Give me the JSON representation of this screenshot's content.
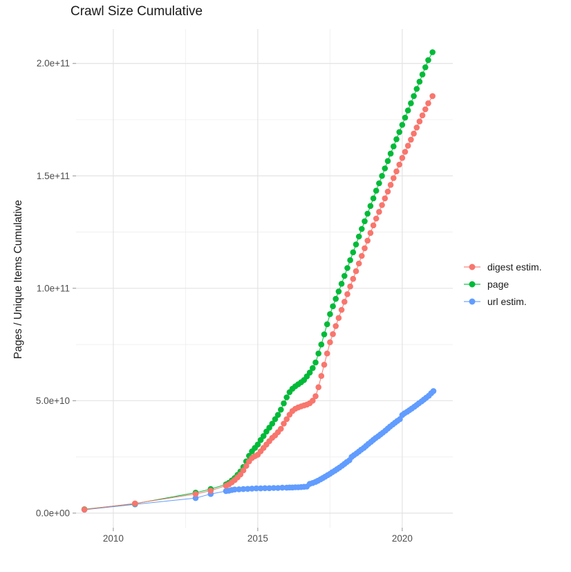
{
  "title": "Crawl Size Cumulative",
  "y_axis_title": "Pages / Unique Items Cumulative",
  "legend": {
    "items": [
      {
        "label": "digest estim.",
        "color": "#F8766D"
      },
      {
        "label": "page",
        "color": "#00BA38"
      },
      {
        "label": "url estim.",
        "color": "#619CFF"
      }
    ]
  },
  "chart_data": {
    "type": "line",
    "title": "Crawl Size Cumulative",
    "xlabel": "",
    "ylabel": "Pages / Unique Items Cumulative",
    "value_unit": "billions (1e9)",
    "xlim": [
      2008.71,
      2021.75
    ],
    "ylim_billions": [
      -6.5,
      215.3
    ],
    "grid": "on",
    "legend_position": "right",
    "x_ticks": {
      "values": [
        2010,
        2015,
        2020
      ],
      "labels": [
        "2010",
        "2015",
        "2020"
      ],
      "minor": [
        2012.5,
        2017.5
      ]
    },
    "y_ticks": {
      "values_billions": [
        0,
        50,
        100,
        150,
        200
      ],
      "labels": [
        "0.0e+00",
        "5.0e+10",
        "1.0e+11",
        "1.5e+11",
        "2.0e+11"
      ],
      "minor_billions": [
        25,
        75,
        125,
        175
      ]
    },
    "series": [
      {
        "name": "url estim.",
        "color": "#619CFF",
        "points": [
          [
            2009.0,
            1.5
          ],
          [
            2010.75,
            3.9
          ],
          [
            2012.85,
            6.7
          ],
          [
            2013.37,
            8.5
          ],
          [
            2013.9,
            9.8
          ],
          [
            2014.0,
            10.0
          ],
          [
            2014.1,
            10.3
          ],
          [
            2014.2,
            10.5
          ],
          [
            2014.35,
            10.6
          ],
          [
            2014.5,
            10.7
          ],
          [
            2014.65,
            10.8
          ],
          [
            2014.8,
            10.9
          ],
          [
            2014.95,
            11.0
          ],
          [
            2015.1,
            11.0
          ],
          [
            2015.25,
            11.1
          ],
          [
            2015.4,
            11.1
          ],
          [
            2015.55,
            11.2
          ],
          [
            2015.7,
            11.2
          ],
          [
            2015.85,
            11.3
          ],
          [
            2016.0,
            11.3
          ],
          [
            2016.1,
            11.4
          ],
          [
            2016.2,
            11.4
          ],
          [
            2016.3,
            11.5
          ],
          [
            2016.4,
            11.5
          ],
          [
            2016.5,
            11.6
          ],
          [
            2016.6,
            11.7
          ],
          [
            2016.7,
            11.8
          ],
          [
            2016.8,
            13.0
          ],
          [
            2016.9,
            13.4
          ],
          [
            2017.0,
            13.9
          ],
          [
            2017.08,
            14.4
          ],
          [
            2017.17,
            15.0
          ],
          [
            2017.25,
            15.6
          ],
          [
            2017.33,
            16.2
          ],
          [
            2017.42,
            16.9
          ],
          [
            2017.5,
            17.5
          ],
          [
            2017.58,
            18.2
          ],
          [
            2017.67,
            18.9
          ],
          [
            2017.75,
            19.6
          ],
          [
            2017.83,
            20.3
          ],
          [
            2017.92,
            21.1
          ],
          [
            2018.0,
            21.9
          ],
          [
            2018.08,
            22.7
          ],
          [
            2018.17,
            23.5
          ],
          [
            2018.25,
            25.0
          ],
          [
            2018.33,
            25.8
          ],
          [
            2018.42,
            26.6
          ],
          [
            2018.5,
            27.4
          ],
          [
            2018.58,
            28.2
          ],
          [
            2018.67,
            29.0
          ],
          [
            2018.75,
            29.9
          ],
          [
            2018.83,
            30.8
          ],
          [
            2018.92,
            31.7
          ],
          [
            2019.0,
            32.6
          ],
          [
            2019.08,
            33.4
          ],
          [
            2019.17,
            34.2
          ],
          [
            2019.25,
            35.0
          ],
          [
            2019.33,
            35.8
          ],
          [
            2019.42,
            36.7
          ],
          [
            2019.5,
            37.6
          ],
          [
            2019.58,
            38.5
          ],
          [
            2019.67,
            39.4
          ],
          [
            2019.75,
            40.2
          ],
          [
            2019.83,
            41.0
          ],
          [
            2019.92,
            41.8
          ],
          [
            2020.0,
            43.6
          ],
          [
            2020.08,
            44.4
          ],
          [
            2020.17,
            45.1
          ],
          [
            2020.25,
            45.8
          ],
          [
            2020.33,
            46.5
          ],
          [
            2020.42,
            47.3
          ],
          [
            2020.5,
            48.1
          ],
          [
            2020.58,
            48.9
          ],
          [
            2020.67,
            49.7
          ],
          [
            2020.75,
            50.5
          ],
          [
            2020.83,
            51.3
          ],
          [
            2020.92,
            52.2
          ],
          [
            2021.0,
            53.3
          ],
          [
            2021.08,
            54.3
          ]
        ]
      },
      {
        "name": "page",
        "color": "#00BA38",
        "points": [
          [
            2009.0,
            1.7
          ],
          [
            2010.75,
            4.2
          ],
          [
            2012.85,
            9.1
          ],
          [
            2013.37,
            10.7
          ],
          [
            2013.9,
            12.8
          ],
          [
            2014.0,
            13.5
          ],
          [
            2014.1,
            14.5
          ],
          [
            2014.2,
            15.6
          ],
          [
            2014.3,
            17.0
          ],
          [
            2014.4,
            18.5
          ],
          [
            2014.5,
            20.5
          ],
          [
            2014.6,
            23.0
          ],
          [
            2014.7,
            25.5
          ],
          [
            2014.8,
            27.5
          ],
          [
            2014.9,
            29.0
          ],
          [
            2015.0,
            30.5
          ],
          [
            2015.1,
            32.5
          ],
          [
            2015.2,
            34.3
          ],
          [
            2015.3,
            36.3
          ],
          [
            2015.4,
            38.0
          ],
          [
            2015.5,
            39.8
          ],
          [
            2015.6,
            41.8
          ],
          [
            2015.7,
            43.7
          ],
          [
            2015.8,
            46.0
          ],
          [
            2015.9,
            48.8
          ],
          [
            2016.0,
            51.5
          ],
          [
            2016.1,
            53.8
          ],
          [
            2016.2,
            55.3
          ],
          [
            2016.3,
            56.4
          ],
          [
            2016.4,
            57.3
          ],
          [
            2016.5,
            58.2
          ],
          [
            2016.6,
            59.2
          ],
          [
            2016.7,
            60.8
          ],
          [
            2016.8,
            62.5
          ],
          [
            2016.9,
            64.5
          ],
          [
            2017.0,
            67.0
          ],
          [
            2017.1,
            71.0
          ],
          [
            2017.2,
            75.0
          ],
          [
            2017.3,
            79.5
          ],
          [
            2017.4,
            84.0
          ],
          [
            2017.5,
            88.5
          ],
          [
            2017.6,
            92.0
          ],
          [
            2017.7,
            95.3
          ],
          [
            2017.8,
            98.6
          ],
          [
            2017.9,
            102.0
          ],
          [
            2018.0,
            105.5
          ],
          [
            2018.1,
            109.0
          ],
          [
            2018.2,
            112.5
          ],
          [
            2018.3,
            116.0
          ],
          [
            2018.4,
            119.5
          ],
          [
            2018.5,
            123.0
          ],
          [
            2018.6,
            126.4
          ],
          [
            2018.7,
            129.8
          ],
          [
            2018.8,
            133.2
          ],
          [
            2018.9,
            136.6
          ],
          [
            2019.0,
            140.0
          ],
          [
            2019.1,
            143.4
          ],
          [
            2019.2,
            146.7
          ],
          [
            2019.3,
            150.0
          ],
          [
            2019.4,
            153.3
          ],
          [
            2019.5,
            156.6
          ],
          [
            2019.6,
            159.9
          ],
          [
            2019.7,
            163.1
          ],
          [
            2019.8,
            166.3
          ],
          [
            2019.9,
            169.5
          ],
          [
            2020.0,
            172.7
          ],
          [
            2020.1,
            175.9
          ],
          [
            2020.2,
            179.1
          ],
          [
            2020.3,
            182.3
          ],
          [
            2020.4,
            185.5
          ],
          [
            2020.5,
            188.7
          ],
          [
            2020.6,
            191.9
          ],
          [
            2020.7,
            195.1
          ],
          [
            2020.8,
            198.3
          ],
          [
            2020.9,
            201.5
          ],
          [
            2021.05,
            205.0
          ]
        ]
      },
      {
        "name": "digest estim.",
        "color": "#F8766D",
        "points": [
          [
            2009.0,
            1.6
          ],
          [
            2010.75,
            4.3
          ],
          [
            2012.85,
            8.5
          ],
          [
            2013.37,
            10.0
          ],
          [
            2013.9,
            12.2
          ],
          [
            2014.0,
            12.8
          ],
          [
            2014.1,
            13.7
          ],
          [
            2014.2,
            14.7
          ],
          [
            2014.3,
            15.9
          ],
          [
            2014.4,
            17.2
          ],
          [
            2014.5,
            19.0
          ],
          [
            2014.6,
            21.0
          ],
          [
            2014.7,
            23.0
          ],
          [
            2014.8,
            24.5
          ],
          [
            2014.9,
            25.3
          ],
          [
            2015.0,
            26.0
          ],
          [
            2015.1,
            27.5
          ],
          [
            2015.2,
            29.0
          ],
          [
            2015.3,
            30.5
          ],
          [
            2015.4,
            32.0
          ],
          [
            2015.5,
            33.5
          ],
          [
            2015.6,
            34.6
          ],
          [
            2015.7,
            36.0
          ],
          [
            2015.8,
            37.5
          ],
          [
            2015.9,
            39.8
          ],
          [
            2016.0,
            41.8
          ],
          [
            2016.1,
            43.8
          ],
          [
            2016.2,
            45.4
          ],
          [
            2016.3,
            46.4
          ],
          [
            2016.4,
            47.0
          ],
          [
            2016.5,
            47.5
          ],
          [
            2016.6,
            47.9
          ],
          [
            2016.7,
            48.3
          ],
          [
            2016.8,
            48.9
          ],
          [
            2016.9,
            50.0
          ],
          [
            2017.0,
            52.0
          ],
          [
            2017.1,
            56.0
          ],
          [
            2017.2,
            61.0
          ],
          [
            2017.3,
            66.0
          ],
          [
            2017.4,
            71.0
          ],
          [
            2017.5,
            76.0
          ],
          [
            2017.6,
            79.6
          ],
          [
            2017.7,
            83.2
          ],
          [
            2017.8,
            86.8
          ],
          [
            2017.9,
            90.4
          ],
          [
            2018.0,
            94.0
          ],
          [
            2018.1,
            97.4
          ],
          [
            2018.2,
            100.8
          ],
          [
            2018.3,
            104.2
          ],
          [
            2018.4,
            107.6
          ],
          [
            2018.5,
            111.0
          ],
          [
            2018.6,
            114.4
          ],
          [
            2018.7,
            117.8
          ],
          [
            2018.8,
            121.2
          ],
          [
            2018.9,
            124.6
          ],
          [
            2019.0,
            128.0
          ],
          [
            2019.1,
            131.0
          ],
          [
            2019.2,
            134.0
          ],
          [
            2019.3,
            137.0
          ],
          [
            2019.4,
            140.0
          ],
          [
            2019.5,
            143.0
          ],
          [
            2019.6,
            146.0
          ],
          [
            2019.7,
            149.0
          ],
          [
            2019.8,
            152.0
          ],
          [
            2019.9,
            155.0
          ],
          [
            2020.0,
            158.0
          ],
          [
            2020.1,
            160.7
          ],
          [
            2020.2,
            163.4
          ],
          [
            2020.3,
            166.1
          ],
          [
            2020.4,
            168.8
          ],
          [
            2020.5,
            171.5
          ],
          [
            2020.6,
            174.2
          ],
          [
            2020.7,
            176.9
          ],
          [
            2020.8,
            179.6
          ],
          [
            2020.9,
            182.3
          ],
          [
            2021.05,
            185.5
          ]
        ]
      }
    ]
  },
  "colors": {
    "background": "#ffffff",
    "grid_major": "#e3e3e3",
    "grid_minor": "#f0f0f0",
    "tick_mark": "#8f8f8f",
    "tick_text": "#4d4d4d",
    "title_text": "#1a1a1a"
  }
}
